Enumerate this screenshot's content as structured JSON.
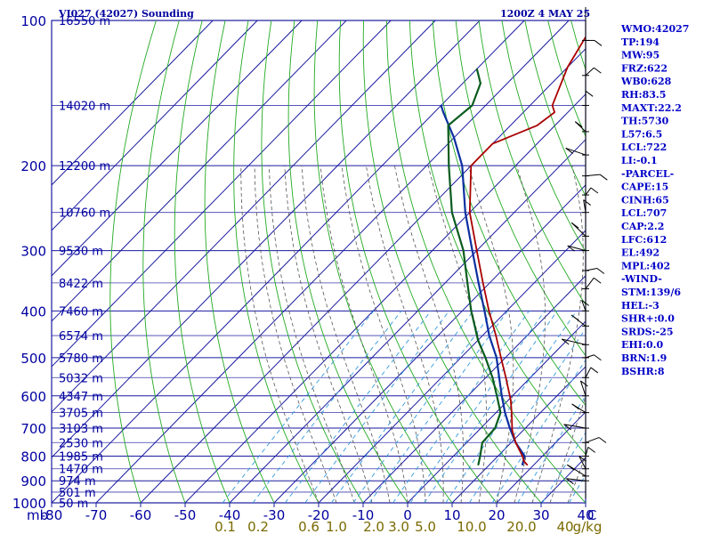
{
  "header": {
    "station": "VI027 (42027) Sounding",
    "time": "1200Z  4 MAY 25"
  },
  "indices": [
    "WMO:42027",
    "TP:194",
    "MW:95",
    "FRZ:622",
    "WB0:628",
    "RH:83.5",
    "MAXT:22.2",
    "TH:5730",
    "L57:6.5",
    "LCL:722",
    "LI:-0.1",
    "-PARCEL-",
    "CAPE:15",
    "CINH:65",
    "LCL:707",
    "CAP:2.2",
    "LFC:612",
    "EL:492",
    "MPL:402",
    "-WIND-",
    "STM:139/6",
    "HEL:-3",
    "SHR+:0.0",
    "SRDS:-25",
    "EHI:0.0",
    "BRN:1.9",
    "BSHR:8"
  ],
  "colors": {
    "grid": "#1a1aa0",
    "isotherm": "#1a1aa0",
    "dry_adiabat": "#22aa22",
    "moist_adiabat": "#555555",
    "mixing_ratio": "#3399dd",
    "temperature": "#0c2fa0",
    "dewpoint": "#0a5c1e",
    "parcel": "#aa0000",
    "text_blue": "#0000a0",
    "text_olive": "#7a6a00"
  },
  "chart_data": {
    "type": "line",
    "subtype": "skew-T log-P sounding",
    "x_axis": {
      "label": "",
      "unit_label": "C",
      "ticks": [
        -80,
        -70,
        -60,
        -50,
        -40,
        -30,
        -20,
        -10,
        0,
        10,
        20,
        30,
        40
      ],
      "range": [
        -80,
        40
      ]
    },
    "y_axis": {
      "scale": "log",
      "unit_label": "mb",
      "ticks": [
        100,
        200,
        300,
        400,
        500,
        600,
        700,
        800,
        900,
        1000
      ],
      "range": [
        1000,
        100
      ]
    },
    "height_labels": [
      {
        "p": 100,
        "label": "16550 m"
      },
      {
        "p": 150,
        "label": "14020 m"
      },
      {
        "p": 200,
        "label": "12200 m"
      },
      {
        "p": 250,
        "label": "10760 m"
      },
      {
        "p": 300,
        "label": "9530 m"
      },
      {
        "p": 350,
        "label": "8422 m"
      },
      {
        "p": 400,
        "label": "7460 m"
      },
      {
        "p": 450,
        "label": "6574 m"
      },
      {
        "p": 500,
        "label": "5780 m"
      },
      {
        "p": 550,
        "label": "5032 m"
      },
      {
        "p": 600,
        "label": "4347 m"
      },
      {
        "p": 650,
        "label": "3705 m"
      },
      {
        "p": 700,
        "label": "3103 m"
      },
      {
        "p": 750,
        "label": "2530 m"
      },
      {
        "p": 800,
        "label": "1985 m"
      },
      {
        "p": 850,
        "label": "1470 m"
      },
      {
        "p": 900,
        "label": "974 m"
      },
      {
        "p": 950,
        "label": "501 m"
      },
      {
        "p": 1000,
        "label": "50 m"
      }
    ],
    "mixing_ratio_labels": [
      "0.1",
      "0.2",
      "0.6",
      "1.0",
      "2.0",
      "3.0",
      "5.0",
      "10.0",
      "20.0",
      "40",
      "g/kg"
    ],
    "series": [
      {
        "name": "",
        "role": "temperature",
        "points": [
          {
            "p": 834,
            "t": 17.4
          },
          {
            "p": 800,
            "t": 16.0
          },
          {
            "p": 750,
            "t": 11.0
          },
          {
            "p": 700,
            "t": 6.5
          },
          {
            "p": 650,
            "t": 2.0
          },
          {
            "p": 600,
            "t": -2.4
          },
          {
            "p": 550,
            "t": -7.0
          },
          {
            "p": 500,
            "t": -12.0
          },
          {
            "p": 450,
            "t": -18.5
          },
          {
            "p": 400,
            "t": -25.0
          },
          {
            "p": 350,
            "t": -32.5
          },
          {
            "p": 300,
            "t": -41.0
          },
          {
            "p": 250,
            "t": -51.0
          },
          {
            "p": 200,
            "t": -62.0
          },
          {
            "p": 175,
            "t": -70.0
          },
          {
            "p": 155,
            "t": -78.0
          },
          {
            "p": 150,
            "t": -80.0
          }
        ]
      },
      {
        "name": "",
        "role": "dewpoint",
        "points": [
          {
            "p": 834,
            "t": 7.5
          },
          {
            "p": 800,
            "t": 6.0
          },
          {
            "p": 750,
            "t": 3.5
          },
          {
            "p": 700,
            "t": 3.2
          },
          {
            "p": 650,
            "t": 1.0
          },
          {
            "p": 600,
            "t": -3.5
          },
          {
            "p": 550,
            "t": -8.5
          },
          {
            "p": 500,
            "t": -14.5
          },
          {
            "p": 460,
            "t": -20.0
          },
          {
            "p": 400,
            "t": -28.0
          },
          {
            "p": 350,
            "t": -35.0
          },
          {
            "p": 300,
            "t": -43.0
          },
          {
            "p": 250,
            "t": -54.0
          },
          {
            "p": 200,
            "t": -65.0
          },
          {
            "p": 165,
            "t": -74.0
          },
          {
            "p": 150,
            "t": -73.0
          },
          {
            "p": 135,
            "t": -76.0
          },
          {
            "p": 126,
            "t": -80.0
          }
        ]
      },
      {
        "name": "",
        "role": "parcel",
        "points": [
          {
            "p": 834,
            "t": 18.5
          },
          {
            "p": 820,
            "t": 17.0
          },
          {
            "p": 800,
            "t": 15.5
          },
          {
            "p": 750,
            "t": 11.0
          },
          {
            "p": 707,
            "t": 7.5
          },
          {
            "p": 650,
            "t": 3.5
          },
          {
            "p": 612,
            "t": 0.5
          },
          {
            "p": 550,
            "t": -5.5
          },
          {
            "p": 500,
            "t": -11.0
          },
          {
            "p": 450,
            "t": -17.0
          },
          {
            "p": 400,
            "t": -24.0
          },
          {
            "p": 350,
            "t": -31.5
          },
          {
            "p": 300,
            "t": -40.0
          },
          {
            "p": 250,
            "t": -50.0
          },
          {
            "p": 200,
            "t": -60.0
          },
          {
            "p": 194,
            "t": -60.0
          },
          {
            "p": 180,
            "t": -60.0
          },
          {
            "p": 165,
            "t": -54.0
          },
          {
            "p": 155,
            "t": -53.0
          },
          {
            "p": 150,
            "t": -55.0
          },
          {
            "p": 125,
            "t": -60.0
          },
          {
            "p": 100,
            "t": -64.0
          }
        ]
      }
    ]
  }
}
